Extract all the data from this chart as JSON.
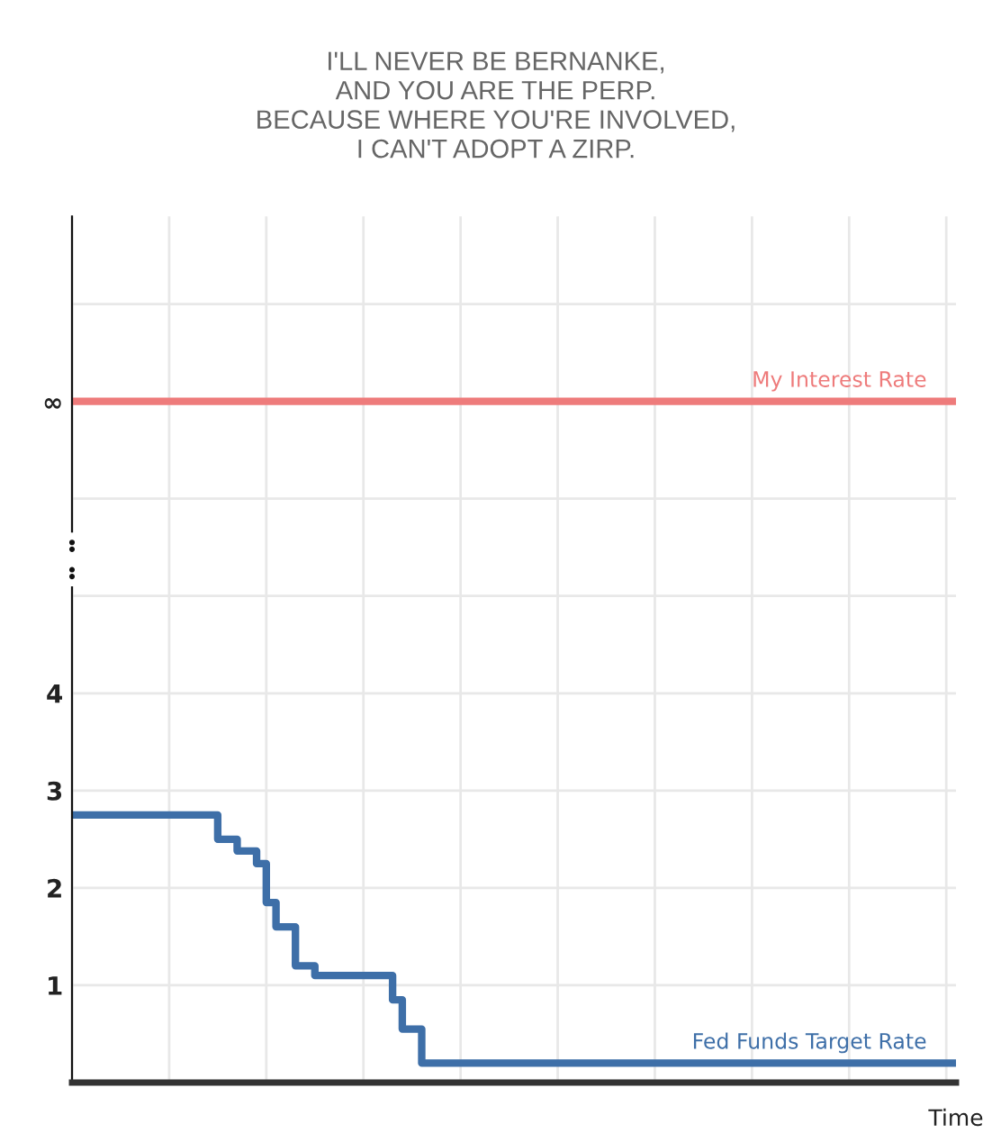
{
  "chart_data": {
    "type": "step",
    "title": "I'LL NEVER BE BERNANKE,\nAND YOU ARE THE PERP.\nBECAUSE WHERE YOU'RE INVOLVED,\nI CAN'T ADOPT A ZIRP.",
    "xlabel": "Time",
    "categories": [
      null,
      null,
      null,
      null,
      null,
      null,
      null,
      null,
      null,
      null,
      null,
      null,
      null,
      null,
      null,
      null,
      null,
      null,
      null,
      null,
      null,
      null,
      null,
      null,
      null,
      null,
      null,
      null,
      null,
      null,
      null,
      null,
      null,
      null,
      null,
      null,
      null,
      null,
      null,
      null,
      null,
      null,
      null,
      null,
      null,
      null,
      null,
      null,
      null,
      null,
      null,
      null,
      null,
      null,
      null,
      null,
      null,
      null,
      null,
      null,
      null,
      null,
      null,
      null,
      null,
      null,
      null,
      null,
      null,
      null,
      null,
      null,
      null,
      null,
      null,
      null,
      null,
      null,
      null,
      null,
      null,
      null,
      null,
      null,
      null,
      null,
      null,
      null,
      null,
      null,
      null,
      null
    ],
    "series": [
      {
        "name": "My Interest Rate",
        "color": "#ee7b7b",
        "type": "line",
        "values": [
          7,
          7,
          7,
          7,
          7,
          7,
          7,
          7,
          7,
          7,
          7,
          7,
          7,
          7,
          7,
          7,
          7,
          7,
          7,
          7,
          7,
          7,
          7,
          7,
          7,
          7,
          7,
          7,
          7,
          7,
          7,
          7,
          7,
          7,
          7,
          7,
          7,
          7,
          7,
          7,
          7,
          7,
          7,
          7,
          7,
          7,
          7,
          7,
          7,
          7,
          7,
          7,
          7,
          7,
          7,
          7,
          7,
          7,
          7,
          7,
          7,
          7,
          7,
          7,
          7,
          7,
          7,
          7,
          7,
          7,
          7,
          7,
          7,
          7,
          7,
          7,
          7,
          7,
          7,
          7,
          7,
          7,
          7,
          7,
          7,
          7,
          7,
          7,
          7,
          7,
          7,
          7
        ]
      },
      {
        "name": "Fed Funds Target Rate",
        "color": "#3e6fa8",
        "values": [
          2.75,
          2.75,
          2.75,
          2.75,
          2.75,
          2.75,
          2.75,
          2.75,
          2.75,
          2.75,
          2.75,
          2.75,
          2.75,
          2.75,
          2.75,
          2.5,
          2.5,
          2.38,
          2.38,
          2.25,
          1.85,
          1.6,
          1.6,
          1.2,
          1.2,
          1.1,
          1.1,
          1.1,
          1.1,
          1.1,
          1.1,
          1.1,
          1.1,
          0.85,
          0.55,
          0.55,
          0.2,
          0.2,
          0.2,
          0.2,
          0.2,
          0.2,
          0.2,
          0.2,
          0.2,
          0.2,
          0.2,
          0.2,
          0.2,
          0.2,
          0.2,
          0.2,
          0.2,
          0.2,
          0.2,
          0.2,
          0.2,
          0.2,
          0.2,
          0.2,
          0.2,
          0.2,
          0.2,
          0.2,
          0.2,
          0.2,
          0.2,
          0.2,
          0.2,
          0.2,
          0.2,
          0.2,
          0.2,
          0.2,
          0.2,
          0.2,
          0.2,
          0.2,
          0.2,
          0.2,
          0.2,
          0.2,
          0.2,
          0.2,
          0.2,
          0.2,
          0.2,
          0.2,
          0.2,
          0.2,
          0.2,
          0.2
        ]
      }
    ],
    "ylim": [
      0,
      8.9
    ],
    "yticks": [
      1,
      2,
      3,
      4,
      {
        "value": 5,
        "label": null
      },
      {
        "value": 6,
        "label": null
      },
      {
        "value": 7,
        "label": "∞"
      },
      {
        "value": 8,
        "label": null
      }
    ],
    "grid": true,
    "legend": false,
    "marker": "none",
    "line_style": "solid"
  }
}
